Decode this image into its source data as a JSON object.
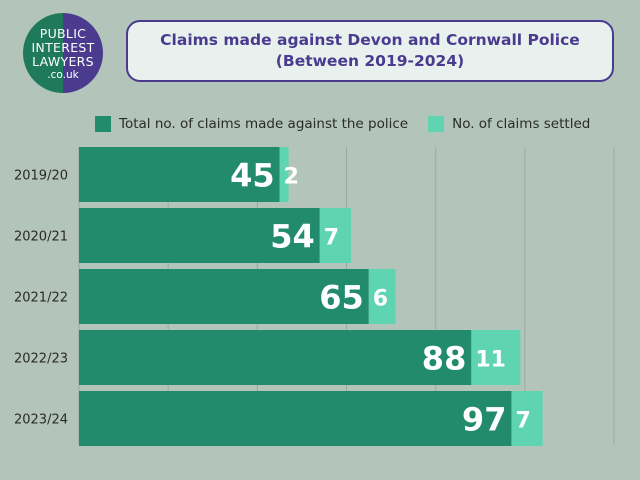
{
  "logo": {
    "line1": "PUBLIC",
    "line2": "INTEREST",
    "line3": "LAWYERS",
    "line4": ".co.uk"
  },
  "title": {
    "line1": "Claims made against Devon and Cornwall Police",
    "line2": "(Between 2019-2024)"
  },
  "colors": {
    "background": "#b3c5bb",
    "total": "#228b6c",
    "settled": "#5fd4b0",
    "title": "#4a3b8f"
  },
  "chart_data": {
    "type": "bar",
    "orientation": "horizontal",
    "stacked": true,
    "categories": [
      "2019/20",
      "2020/21",
      "2021/22",
      "2022/23",
      "2023/24"
    ],
    "series": [
      {
        "name": "Total no. of claims made against the police",
        "values": [
          45,
          54,
          65,
          88,
          97
        ]
      },
      {
        "name": "No. of claims settled",
        "values": [
          2,
          7,
          6,
          11,
          7
        ]
      }
    ],
    "xlim": [
      0,
      120
    ],
    "grid": true,
    "legend_position": "top"
  }
}
